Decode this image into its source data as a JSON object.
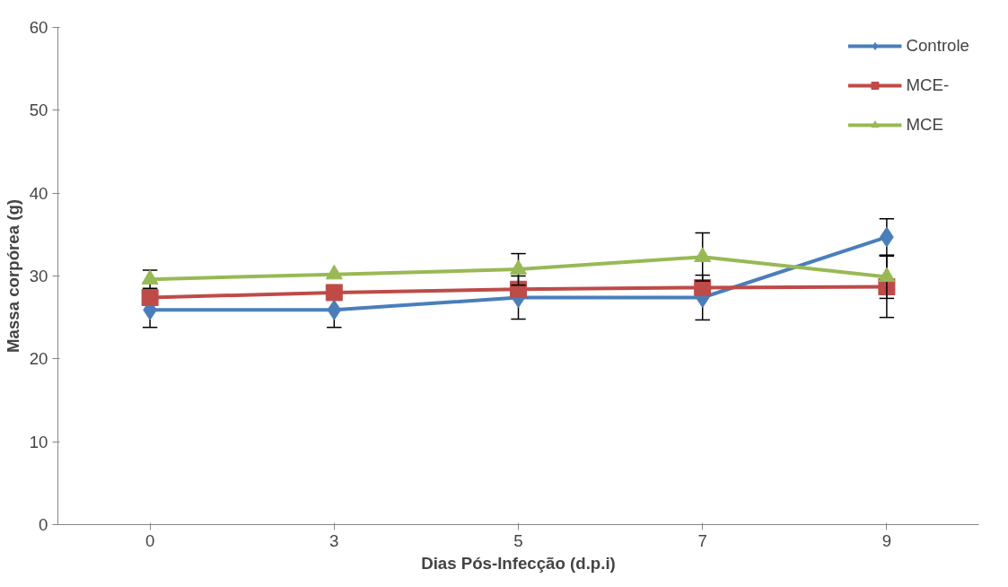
{
  "chart_data": {
    "type": "line",
    "xlabel": "Dias Pós-Infecção (d.p.i)",
    "ylabel": "Massa corpórea (g)",
    "categories": [
      "0",
      "3",
      "5",
      "7",
      "9"
    ],
    "ylim": [
      0,
      60
    ],
    "yticks": [
      0,
      10,
      20,
      30,
      40,
      50,
      60
    ],
    "grid": false,
    "legend": "top right",
    "series": [
      {
        "name": "Controle",
        "color": "#4a7ebb",
        "marker": "diamond",
        "values": [
          25.9,
          25.9,
          27.4,
          27.4,
          34.7
        ],
        "errors": [
          2.1,
          2.1,
          2.6,
          2.7,
          2.2
        ]
      },
      {
        "name": "MCE-",
        "color": "#be4b48",
        "marker": "square",
        "values": [
          27.4,
          28.0,
          28.4,
          28.6,
          28.7
        ],
        "errors": [
          null,
          null,
          null,
          null,
          3.7
        ]
      },
      {
        "name": "MCE",
        "color": "#98b954",
        "marker": "triangle",
        "values": [
          29.6,
          30.2,
          30.8,
          32.3,
          29.9
        ],
        "errors": [
          1.1,
          null,
          1.9,
          2.9,
          2.6
        ]
      }
    ]
  }
}
